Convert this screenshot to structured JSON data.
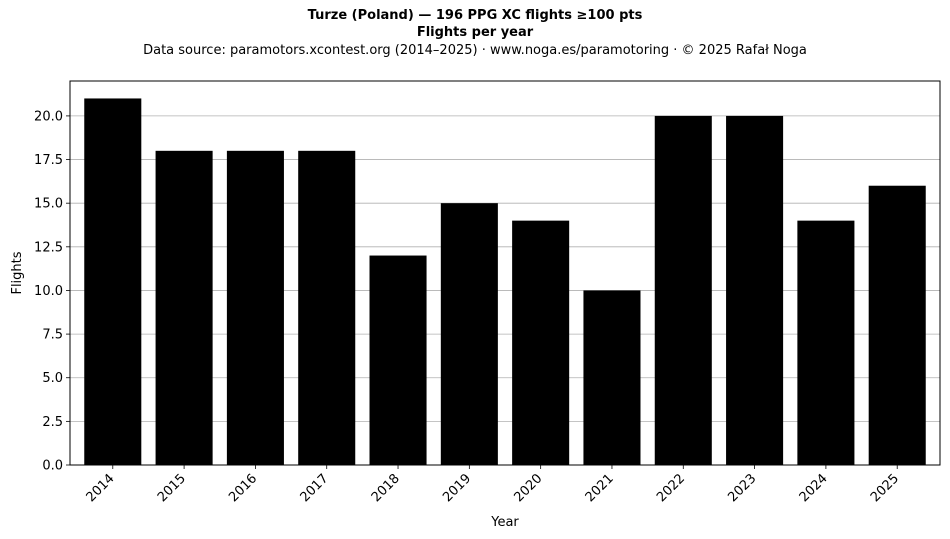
{
  "chart_data": {
    "type": "bar",
    "title": "Turze (Poland)  —  196 PPG XC flights ≥100 pts",
    "subtitle": "Flights per year",
    "source_note": "Data source: paramotors.xcontest.org (2014–2025)  ·  www.noga.es/paramotoring  ·  © 2025 Rafał Noga",
    "xlabel": "Year",
    "ylabel": "Flights",
    "categories": [
      "2014",
      "2015",
      "2016",
      "2017",
      "2018",
      "2019",
      "2020",
      "2021",
      "2022",
      "2023",
      "2024",
      "2025"
    ],
    "values": [
      21,
      18,
      18,
      18,
      12,
      15,
      14,
      10,
      20,
      20,
      14,
      16
    ],
    "ylim": [
      0,
      22
    ],
    "yticks": [
      "0.0",
      "2.5",
      "5.0",
      "7.5",
      "10.0",
      "12.5",
      "15.0",
      "17.5",
      "20.0"
    ],
    "grid": "y",
    "bar_color": "#000000",
    "grid_color": "#b0b0b0"
  }
}
